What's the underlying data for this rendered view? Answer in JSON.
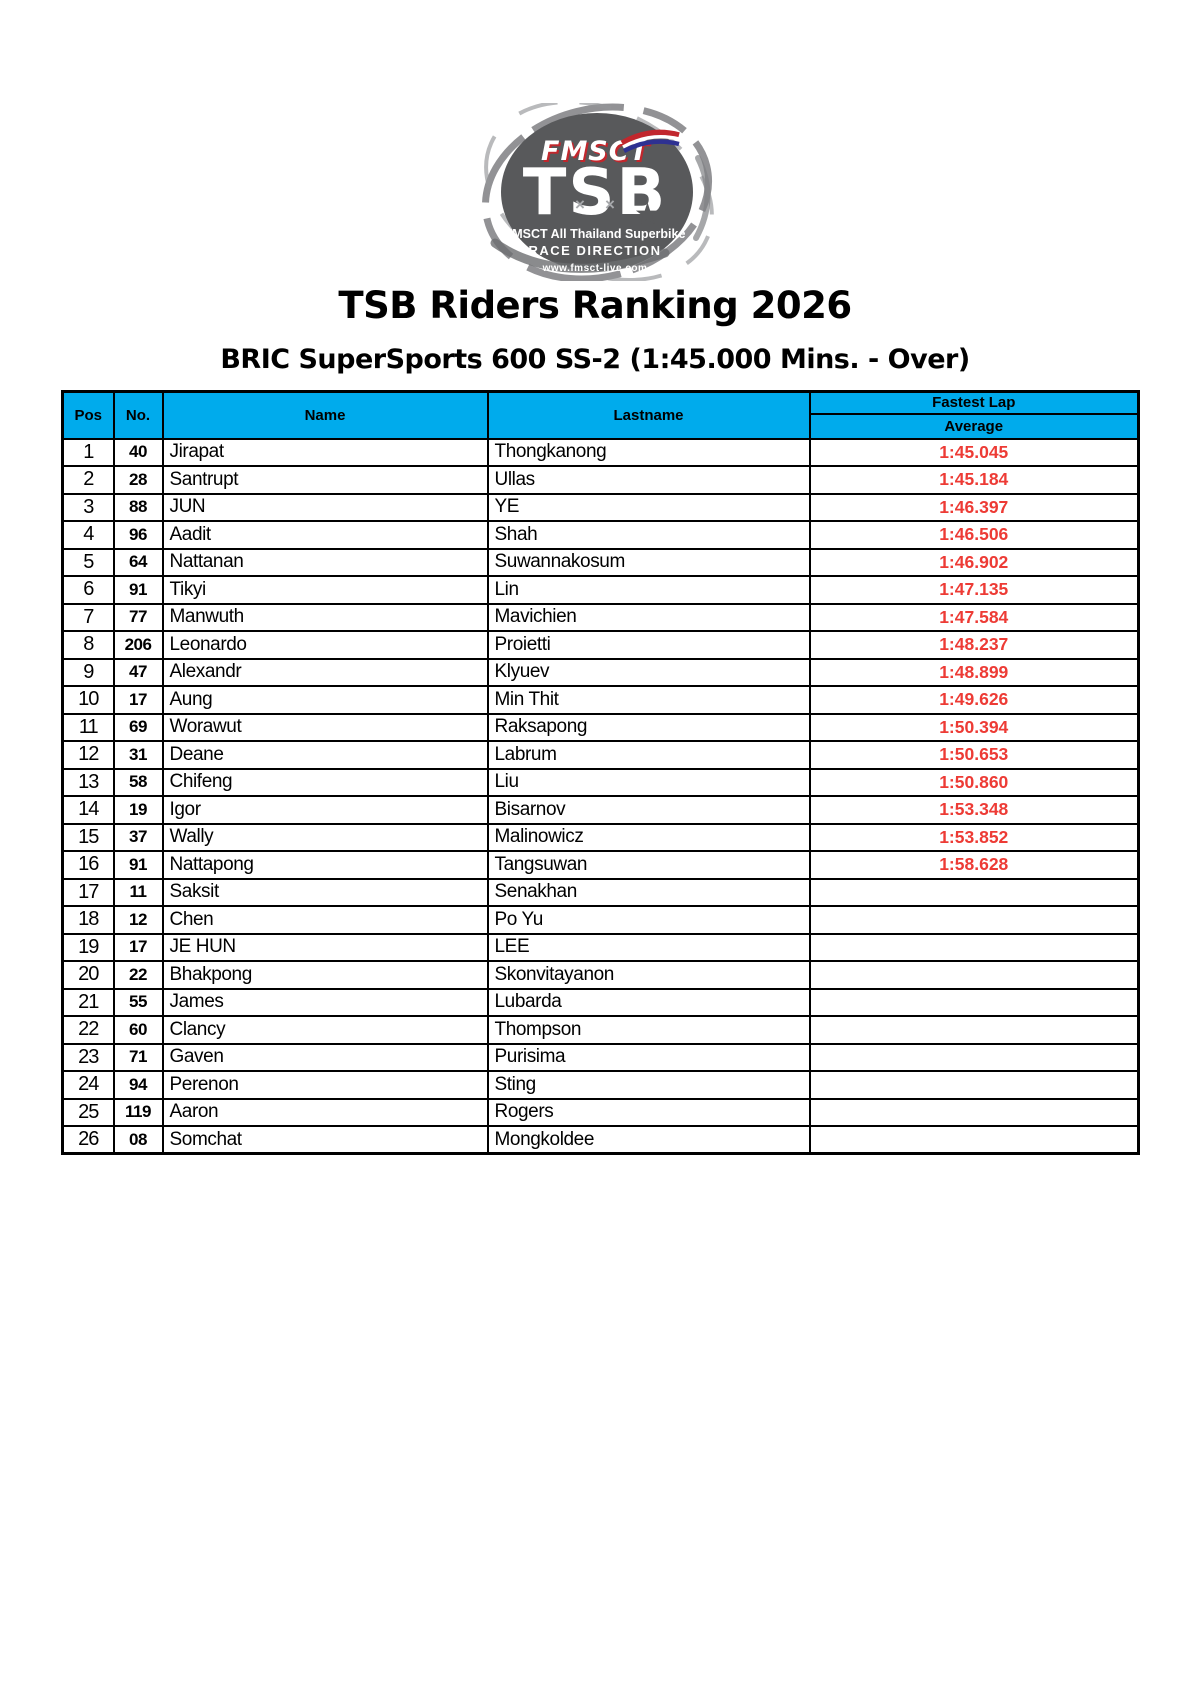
{
  "logo": {
    "fmsct": "FMSCT",
    "tsb": "TSB",
    "line1": "FMSCT All Thailand Superbike",
    "line2": "RACE DIRECTION",
    "website": "www.fmsct-live.com"
  },
  "icons": {
    "star": "★",
    "cross": "×"
  },
  "title": "TSB Riders Ranking 2026",
  "subtitle": "BRIC SuperSports 600 SS-2 (1:45.000 Mins. - Over)",
  "table": {
    "headers": {
      "pos": "Pos",
      "no": "No.",
      "name": "Name",
      "lastname": "Lastname",
      "fastest_lap": "Fastest Lap",
      "average": "Average"
    },
    "rows": [
      {
        "pos": "1",
        "no": "40",
        "name": "Jirapat",
        "lastname": "Thongkanong",
        "average": "1:45.045"
      },
      {
        "pos": "2",
        "no": "28",
        "name": "Santrupt",
        "lastname": "Ullas",
        "average": "1:45.184"
      },
      {
        "pos": "3",
        "no": "88",
        "name": "JUN",
        "lastname": "YE",
        "average": "1:46.397"
      },
      {
        "pos": "4",
        "no": "96",
        "name": "Aadit",
        "lastname": "Shah",
        "average": "1:46.506"
      },
      {
        "pos": "5",
        "no": "64",
        "name": "Nattanan",
        "lastname": "Suwannakosum",
        "average": "1:46.902"
      },
      {
        "pos": "6",
        "no": "91",
        "name": "Tikyi",
        "lastname": "Lin",
        "average": "1:47.135"
      },
      {
        "pos": "7",
        "no": "77",
        "name": "Manwuth",
        "lastname": "Mavichien",
        "average": "1:47.584"
      },
      {
        "pos": "8",
        "no": "206",
        "name": "Leonardo",
        "lastname": "Proietti",
        "average": "1:48.237"
      },
      {
        "pos": "9",
        "no": "47",
        "name": "Alexandr",
        "lastname": "Klyuev",
        "average": "1:48.899"
      },
      {
        "pos": "10",
        "no": "17",
        "name": "Aung",
        "lastname": "Min Thit",
        "average": "1:49.626"
      },
      {
        "pos": "11",
        "no": "69",
        "name": "Worawut",
        "lastname": "Raksapong",
        "average": "1:50.394"
      },
      {
        "pos": "12",
        "no": "31",
        "name": "Deane",
        "lastname": "Labrum",
        "average": "1:50.653"
      },
      {
        "pos": "13",
        "no": "58",
        "name": "Chifeng",
        "lastname": "Liu",
        "average": "1:50.860"
      },
      {
        "pos": "14",
        "no": "19",
        "name": "Igor",
        "lastname": "Bisarnov",
        "average": "1:53.348"
      },
      {
        "pos": "15",
        "no": "37",
        "name": "Wally",
        "lastname": "Malinowicz",
        "average": "1:53.852"
      },
      {
        "pos": "16",
        "no": "91",
        "name": "Nattapong",
        "lastname": "Tangsuwan",
        "average": "1:58.628"
      },
      {
        "pos": "17",
        "no": "11",
        "name": "Saksit",
        "lastname": "Senakhan",
        "average": ""
      },
      {
        "pos": "18",
        "no": "12",
        "name": "Chen",
        "lastname": "Po Yu",
        "average": ""
      },
      {
        "pos": "19",
        "no": "17",
        "name": "JE HUN",
        "lastname": "LEE",
        "average": ""
      },
      {
        "pos": "20",
        "no": "22",
        "name": "Bhakpong",
        "lastname": "Skonvitayanon",
        "average": ""
      },
      {
        "pos": "21",
        "no": "55",
        "name": "James",
        "lastname": "Lubarda",
        "average": ""
      },
      {
        "pos": "22",
        "no": "60",
        "name": "Clancy",
        "lastname": "Thompson",
        "average": ""
      },
      {
        "pos": "23",
        "no": "71",
        "name": "Gaven",
        "lastname": "Purisima",
        "average": ""
      },
      {
        "pos": "24",
        "no": "94",
        "name": "Perenon",
        "lastname": "Sting",
        "average": ""
      },
      {
        "pos": "25",
        "no": "119",
        "name": "Aaron",
        "lastname": "Rogers",
        "average": ""
      },
      {
        "pos": "26",
        "no": "08",
        "name": "Somchat",
        "lastname": "Mongkoldee",
        "average": ""
      }
    ]
  },
  "colors": {
    "header_bg": "#00abec",
    "time_red": "#ed3b35",
    "logo_gray": "#58595b",
    "flag_red": "#c1272d",
    "flag_blue": "#2e3192"
  }
}
